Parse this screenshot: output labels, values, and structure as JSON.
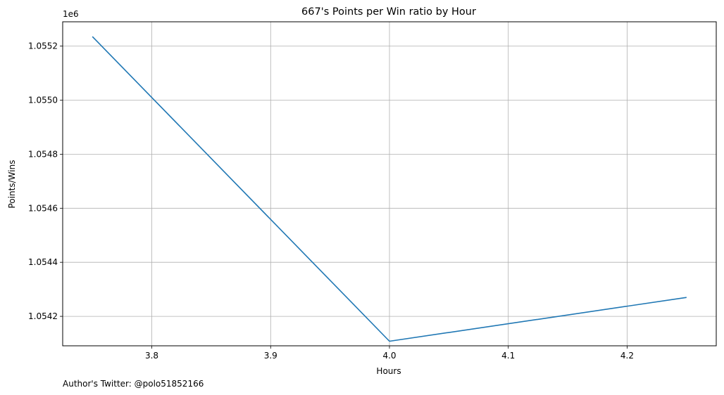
{
  "chart_data": {
    "type": "line",
    "title": "667's Points per Win ratio by Hour",
    "xlabel": "Hours",
    "ylabel": "Points/Wins",
    "y_offset_label": "1e6",
    "footer": "Author's Twitter: @polo51852166",
    "xlim": [
      3.725,
      4.275
    ],
    "ylim": [
      1054091,
      1055290
    ],
    "x_ticks": [
      3.8,
      3.9,
      4.0,
      4.1,
      4.2
    ],
    "x_tick_labels": [
      "3.8",
      "3.9",
      "4.0",
      "4.1",
      "4.2"
    ],
    "y_ticks": [
      1054200,
      1054400,
      1054600,
      1054800,
      1055000,
      1055200
    ],
    "y_tick_labels": [
      "1.0542",
      "1.0544",
      "1.0546",
      "1.0548",
      "1.0550",
      "1.0552"
    ],
    "grid": true,
    "series": [
      {
        "color": "#1f77b4",
        "x": [
          3.75,
          4.0,
          4.25
        ],
        "y": [
          1055235,
          1054108,
          1054270
        ]
      }
    ]
  }
}
